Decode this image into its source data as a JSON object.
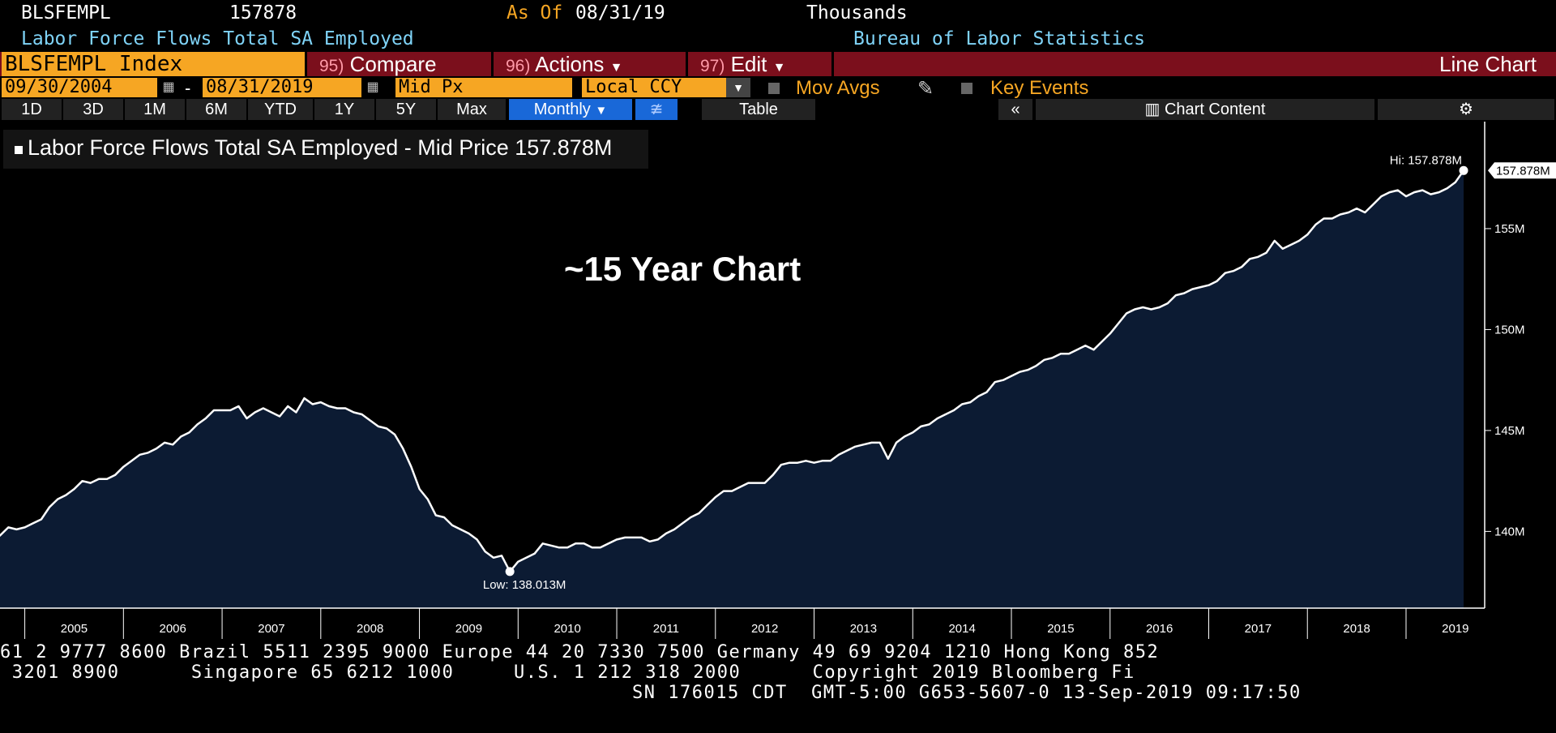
{
  "header": {
    "ticker_code": "BLSFEMPL",
    "last_value": "157878",
    "as_of_label": "As Of",
    "as_of_date": "08/31/19",
    "units": "Thousands",
    "description": "Labor Force Flows Total SA Employed",
    "source": "Bureau of Labor Statistics"
  },
  "toolbar": {
    "security": "BLSFEMPL Index",
    "compare": {
      "num": "95)",
      "label": "Compare"
    },
    "actions": {
      "num": "96)",
      "label": "Actions"
    },
    "edit": {
      "num": "97)",
      "label": "Edit"
    },
    "chart_type": "Line Chart",
    "start_date": "09/30/2004",
    "end_date": "08/31/2019",
    "price_field": "Mid Px",
    "currency": "Local CCY",
    "mov_avgs": "Mov Avgs",
    "key_events": "Key Events",
    "ranges": [
      "1D",
      "3D",
      "1M",
      "6M",
      "YTD",
      "1Y",
      "5Y",
      "Max"
    ],
    "period": "Monthly",
    "table": "Table",
    "chart_content": "Chart Content"
  },
  "legend": {
    "label": "Labor Force Flows Total SA Employed - Mid Price 157.878M"
  },
  "annotation": "~15 Year Chart",
  "chart_data": {
    "type": "area",
    "title": "",
    "xlabel": "",
    "ylabel": "",
    "x_range": [
      "2004-09",
      "2019-08"
    ],
    "ylim": [
      136.2,
      160.3
    ],
    "y_ticks": [
      140,
      145,
      150,
      155
    ],
    "y_tick_labels": [
      "140M",
      "145M",
      "150M",
      "155M"
    ],
    "x_ticks": [
      "2005",
      "2006",
      "2007",
      "2008",
      "2009",
      "2010",
      "2011",
      "2012",
      "2013",
      "2014",
      "2015",
      "2016",
      "2017",
      "2018",
      "2019"
    ],
    "high_label": "Hi: 157.878M",
    "low_label": "Low: 138.013M",
    "last_label": "157.878M",
    "high": 157.878,
    "low": 138.013,
    "last": 157.878,
    "colors": {
      "fill": "#0c1b33",
      "line": "#ffffff",
      "axis": "#ffffff"
    },
    "series": [
      {
        "points": [
          [
            "2004-09",
            139.5
          ],
          [
            "2004-10",
            139.8
          ],
          [
            "2004-11",
            140.2
          ],
          [
            "2004-12",
            140.1
          ],
          [
            "2005-01",
            140.2
          ],
          [
            "2005-02",
            140.4
          ],
          [
            "2005-03",
            140.6
          ],
          [
            "2005-04",
            141.2
          ],
          [
            "2005-05",
            141.6
          ],
          [
            "2005-06",
            141.8
          ],
          [
            "2005-07",
            142.1
          ],
          [
            "2005-08",
            142.5
          ],
          [
            "2005-09",
            142.4
          ],
          [
            "2005-10",
            142.6
          ],
          [
            "2005-11",
            142.6
          ],
          [
            "2005-12",
            142.8
          ],
          [
            "2006-01",
            143.2
          ],
          [
            "2006-02",
            143.5
          ],
          [
            "2006-03",
            143.8
          ],
          [
            "2006-04",
            143.9
          ],
          [
            "2006-05",
            144.1
          ],
          [
            "2006-06",
            144.4
          ],
          [
            "2006-07",
            144.3
          ],
          [
            "2006-08",
            144.7
          ],
          [
            "2006-09",
            144.9
          ],
          [
            "2006-10",
            145.3
          ],
          [
            "2006-11",
            145.6
          ],
          [
            "2006-12",
            146.0
          ],
          [
            "2007-01",
            146.0
          ],
          [
            "2007-02",
            146.0
          ],
          [
            "2007-03",
            146.2
          ],
          [
            "2007-04",
            145.6
          ],
          [
            "2007-05",
            145.9
          ],
          [
            "2007-06",
            146.1
          ],
          [
            "2007-07",
            145.9
          ],
          [
            "2007-08",
            145.7
          ],
          [
            "2007-09",
            146.2
          ],
          [
            "2007-10",
            145.9
          ],
          [
            "2007-11",
            146.6
          ],
          [
            "2007-12",
            146.3
          ],
          [
            "2008-01",
            146.4
          ],
          [
            "2008-02",
            146.2
          ],
          [
            "2008-03",
            146.1
          ],
          [
            "2008-04",
            146.1
          ],
          [
            "2008-05",
            145.9
          ],
          [
            "2008-06",
            145.8
          ],
          [
            "2008-07",
            145.5
          ],
          [
            "2008-08",
            145.2
          ],
          [
            "2008-09",
            145.1
          ],
          [
            "2008-10",
            144.8
          ],
          [
            "2008-11",
            144.1
          ],
          [
            "2008-12",
            143.2
          ],
          [
            "2009-01",
            142.1
          ],
          [
            "2009-02",
            141.6
          ],
          [
            "2009-03",
            140.8
          ],
          [
            "2009-04",
            140.7
          ],
          [
            "2009-05",
            140.3
          ],
          [
            "2009-06",
            140.1
          ],
          [
            "2009-07",
            139.9
          ],
          [
            "2009-08",
            139.6
          ],
          [
            "2009-09",
            139.0
          ],
          [
            "2009-10",
            138.7
          ],
          [
            "2009-11",
            138.8
          ],
          [
            "2009-12",
            138.013
          ],
          [
            "2010-01",
            138.5
          ],
          [
            "2010-02",
            138.7
          ],
          [
            "2010-03",
            138.9
          ],
          [
            "2010-04",
            139.4
          ],
          [
            "2010-05",
            139.3
          ],
          [
            "2010-06",
            139.2
          ],
          [
            "2010-07",
            139.2
          ],
          [
            "2010-08",
            139.4
          ],
          [
            "2010-09",
            139.4
          ],
          [
            "2010-10",
            139.2
          ],
          [
            "2010-11",
            139.2
          ],
          [
            "2010-12",
            139.4
          ],
          [
            "2011-01",
            139.6
          ],
          [
            "2011-02",
            139.7
          ],
          [
            "2011-03",
            139.7
          ],
          [
            "2011-04",
            139.7
          ],
          [
            "2011-05",
            139.5
          ],
          [
            "2011-06",
            139.6
          ],
          [
            "2011-07",
            139.9
          ],
          [
            "2011-08",
            140.1
          ],
          [
            "2011-09",
            140.4
          ],
          [
            "2011-10",
            140.7
          ],
          [
            "2011-11",
            140.9
          ],
          [
            "2011-12",
            141.3
          ],
          [
            "2012-01",
            141.7
          ],
          [
            "2012-02",
            142.0
          ],
          [
            "2012-03",
            142.0
          ],
          [
            "2012-04",
            142.2
          ],
          [
            "2012-05",
            142.4
          ],
          [
            "2012-06",
            142.4
          ],
          [
            "2012-07",
            142.4
          ],
          [
            "2012-08",
            142.8
          ],
          [
            "2012-09",
            143.3
          ],
          [
            "2012-10",
            143.4
          ],
          [
            "2012-11",
            143.4
          ],
          [
            "2012-12",
            143.5
          ],
          [
            "2013-01",
            143.4
          ],
          [
            "2013-02",
            143.5
          ],
          [
            "2013-03",
            143.5
          ],
          [
            "2013-04",
            143.8
          ],
          [
            "2013-05",
            144.0
          ],
          [
            "2013-06",
            144.2
          ],
          [
            "2013-07",
            144.3
          ],
          [
            "2013-08",
            144.4
          ],
          [
            "2013-09",
            144.4
          ],
          [
            "2013-10",
            143.6
          ],
          [
            "2013-11",
            144.4
          ],
          [
            "2013-12",
            144.7
          ],
          [
            "2014-01",
            144.9
          ],
          [
            "2014-02",
            145.2
          ],
          [
            "2014-03",
            145.3
          ],
          [
            "2014-04",
            145.6
          ],
          [
            "2014-05",
            145.8
          ],
          [
            "2014-06",
            146.0
          ],
          [
            "2014-07",
            146.3
          ],
          [
            "2014-08",
            146.4
          ],
          [
            "2014-09",
            146.7
          ],
          [
            "2014-10",
            146.9
          ],
          [
            "2014-11",
            147.4
          ],
          [
            "2014-12",
            147.5
          ],
          [
            "2015-01",
            147.7
          ],
          [
            "2015-02",
            147.9
          ],
          [
            "2015-03",
            148.0
          ],
          [
            "2015-04",
            148.2
          ],
          [
            "2015-05",
            148.5
          ],
          [
            "2015-06",
            148.6
          ],
          [
            "2015-07",
            148.8
          ],
          [
            "2015-08",
            148.8
          ],
          [
            "2015-09",
            149.0
          ],
          [
            "2015-10",
            149.2
          ],
          [
            "2015-11",
            149.0
          ],
          [
            "2015-12",
            149.4
          ],
          [
            "2016-01",
            149.8
          ],
          [
            "2016-02",
            150.3
          ],
          [
            "2016-03",
            150.8
          ],
          [
            "2016-04",
            151.0
          ],
          [
            "2016-05",
            151.1
          ],
          [
            "2016-06",
            151.0
          ],
          [
            "2016-07",
            151.1
          ],
          [
            "2016-08",
            151.3
          ],
          [
            "2016-09",
            151.7
          ],
          [
            "2016-10",
            151.8
          ],
          [
            "2016-11",
            152.0
          ],
          [
            "2016-12",
            152.1
          ],
          [
            "2017-01",
            152.2
          ],
          [
            "2017-02",
            152.4
          ],
          [
            "2017-03",
            152.8
          ],
          [
            "2017-04",
            152.9
          ],
          [
            "2017-05",
            153.1
          ],
          [
            "2017-06",
            153.5
          ],
          [
            "2017-07",
            153.6
          ],
          [
            "2017-08",
            153.8
          ],
          [
            "2017-09",
            154.4
          ],
          [
            "2017-10",
            154.0
          ],
          [
            "2017-11",
            154.2
          ],
          [
            "2017-12",
            154.4
          ],
          [
            "2018-01",
            154.7
          ],
          [
            "2018-02",
            155.2
          ],
          [
            "2018-03",
            155.5
          ],
          [
            "2018-04",
            155.5
          ],
          [
            "2018-05",
            155.7
          ],
          [
            "2018-06",
            155.8
          ],
          [
            "2018-07",
            156.0
          ],
          [
            "2018-08",
            155.8
          ],
          [
            "2018-09",
            156.2
          ],
          [
            "2018-10",
            156.6
          ],
          [
            "2018-11",
            156.8
          ],
          [
            "2018-12",
            156.9
          ],
          [
            "2019-01",
            156.6
          ],
          [
            "2019-02",
            156.8
          ],
          [
            "2019-03",
            156.9
          ],
          [
            "2019-04",
            156.7
          ],
          [
            "2019-05",
            156.8
          ],
          [
            "2019-06",
            157.0
          ],
          [
            "2019-07",
            157.3
          ],
          [
            "2019-08",
            157.878
          ]
        ]
      }
    ]
  },
  "footer": {
    "line1": "61 2 9777 8600 Brazil 5511 2395 9000 Europe 44 20 7330 7500 Germany 49 69 9204 1210 Hong Kong 852",
    "line2": " 3201 8900      Singapore 65 6212 1000     U.S. 1 212 318 2000      Copyright 2019 Bloomberg Fi",
    "line3": "SN 176015 CDT  GMT-5:00 G653-5607-0 13-Sep-2019 09:17:50"
  }
}
